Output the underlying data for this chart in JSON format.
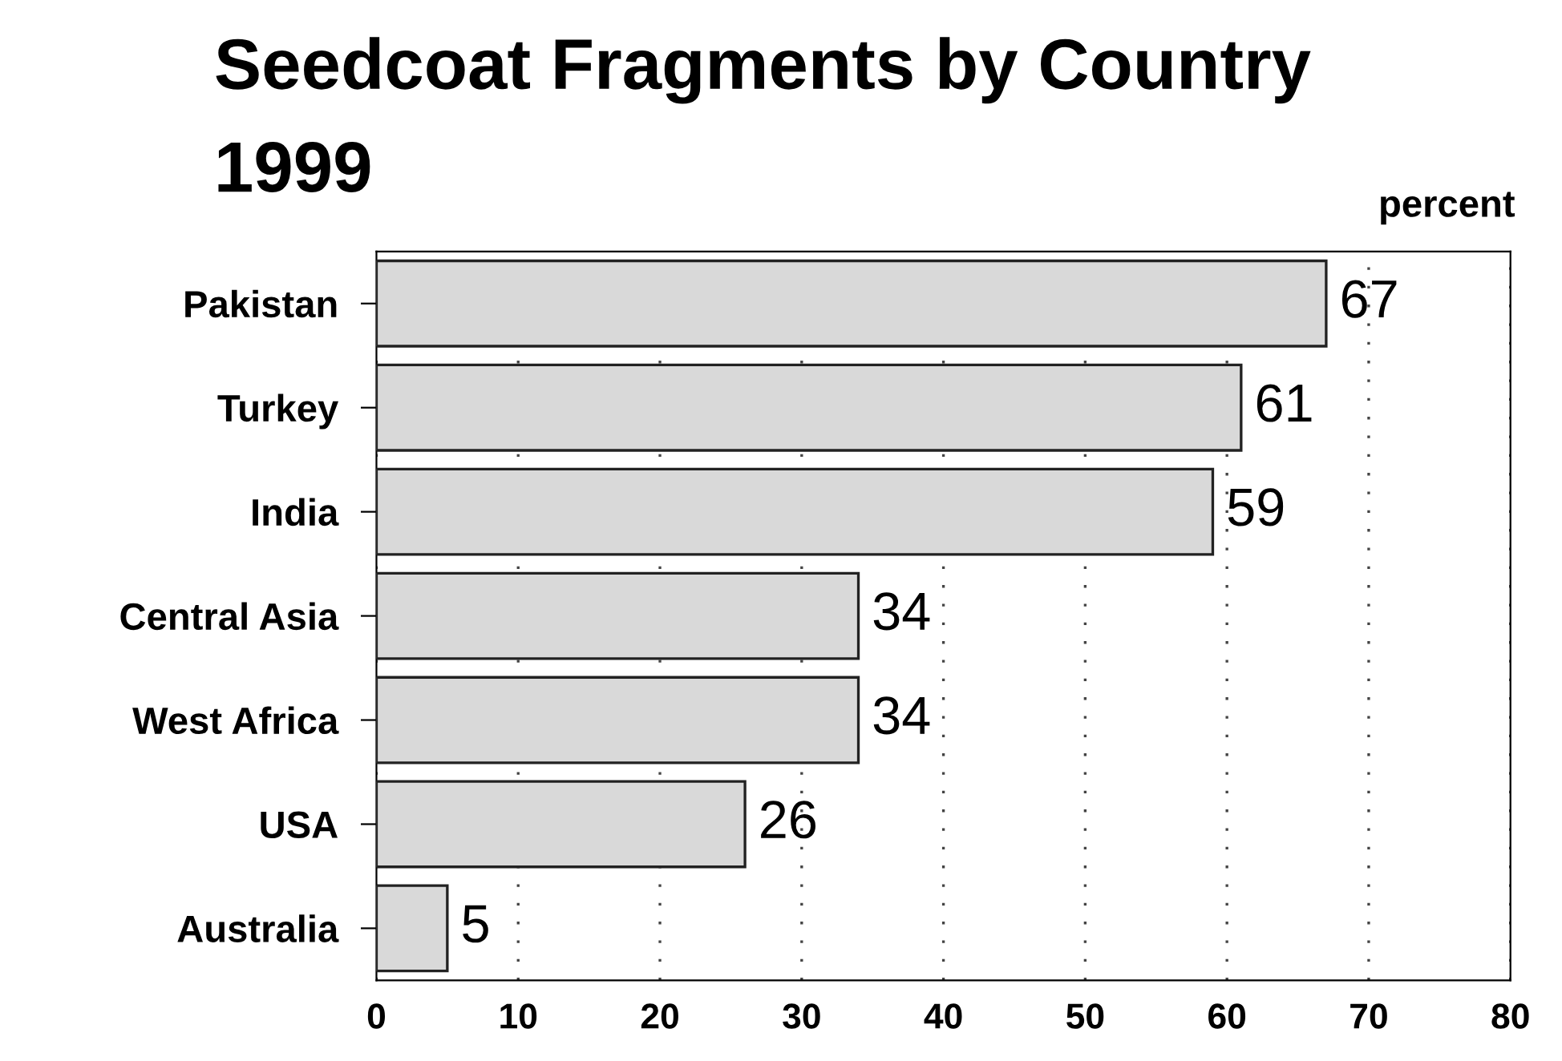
{
  "chart_data": {
    "type": "bar",
    "orientation": "horizontal",
    "title": "Seedcoat Fragments by Country",
    "subtitle": "1999",
    "annotations": [
      "percent"
    ],
    "categories": [
      "Pakistan",
      "Turkey",
      "India",
      "Central Asia",
      "West Africa",
      "USA",
      "Australia"
    ],
    "values": [
      67,
      61,
      59,
      34,
      34,
      26,
      5
    ],
    "color": "#d9d9d9",
    "xlim": [
      0,
      80
    ],
    "xticks": [
      0,
      10,
      20,
      30,
      40,
      50,
      60,
      70,
      80
    ],
    "grid": "x",
    "data_labels": true
  }
}
